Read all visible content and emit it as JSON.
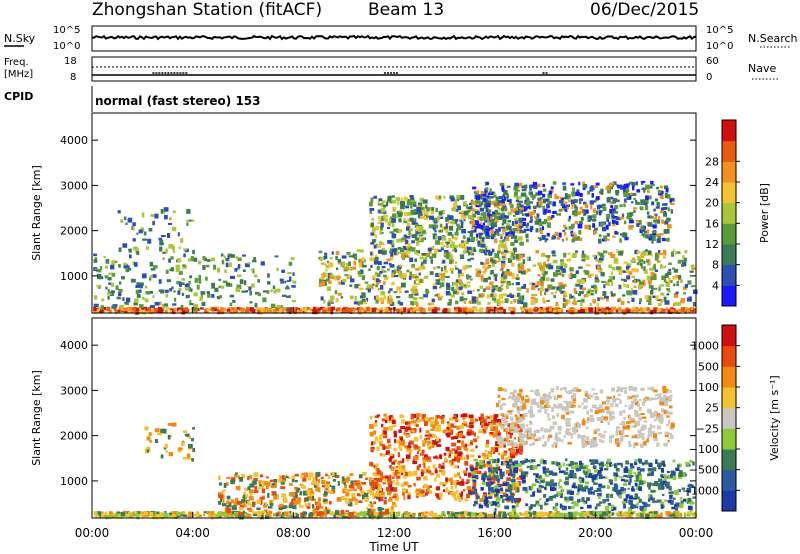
{
  "header": {
    "station": "Zhongshan Station (fitACF)",
    "beam": "Beam 13",
    "date": "06/Dec/2015"
  },
  "top_panels": {
    "nsky_label": "N.Sky",
    "nsky_ticks": [
      "10^5",
      "10^0"
    ],
    "nsearch_label": "N.Search",
    "nsearch_ticks": [
      "10^5",
      "10^0"
    ],
    "freq_label_1": "Freq.",
    "freq_label_2": "[MHz]",
    "freq_ticks": [
      "18",
      "8"
    ],
    "nave_label": "Nave",
    "nave_ticks": [
      "60",
      "0"
    ],
    "cpid_label": "CPID",
    "cpid_value": "normal (fast stereo) 153"
  },
  "chart_data": [
    {
      "type": "heatmap",
      "name": "power-panel",
      "ylabel": "Slant Range [km]",
      "y_ticks": [
        "1000",
        "2000",
        "3000",
        "4000"
      ],
      "ylim": [
        180,
        4600
      ],
      "xlim": [
        0,
        24
      ],
      "colorbar": {
        "label": "Power [dB]",
        "ticks": [
          "4",
          "8",
          "12",
          "16",
          "20",
          "24",
          "28"
        ],
        "colors": [
          "#1a1aff",
          "#2b4fb5",
          "#3a7a55",
          "#5a9a3a",
          "#a8c83a",
          "#f2c230",
          "#f29020",
          "#e85a10",
          "#d01010"
        ]
      }
    },
    {
      "type": "heatmap",
      "name": "velocity-panel",
      "ylabel": "Slant Range [km]",
      "y_ticks": [
        "1000",
        "2000",
        "3000",
        "4000"
      ],
      "ylim": [
        180,
        4600
      ],
      "xlim": [
        0,
        24
      ],
      "xlabel": "Time UT",
      "x_ticks": [
        "00:00",
        "04:00",
        "08:00",
        "12:00",
        "16:00",
        "20:00",
        "00:00"
      ],
      "colorbar": {
        "label": "Velocity [m s⁻¹]",
        "ticks": [
          "1000",
          "500",
          "100",
          "25",
          "−25",
          "−100",
          "−500",
          "−1000"
        ],
        "colors": [
          "#1a3aa8",
          "#2c5aa0",
          "#3a7a55",
          "#8ccc3a",
          "#c8c8c0",
          "#f2c230",
          "#f28a10",
          "#e84a10",
          "#d01010"
        ]
      }
    }
  ]
}
